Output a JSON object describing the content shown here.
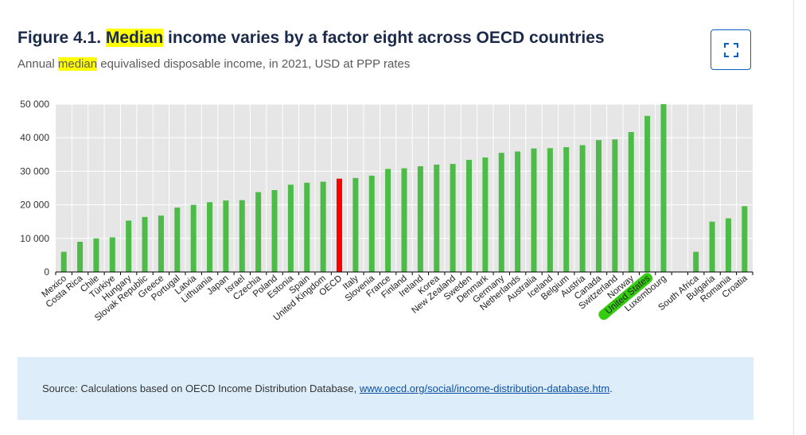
{
  "header": {
    "title_prefix": "Figure 4.1. ",
    "title_highlight": "Median",
    "title_rest": " income varies by a factor eight across OECD countries",
    "subtitle_prefix": "Annual ",
    "subtitle_highlight": "median",
    "subtitle_rest": " equivalised disposable income, in 2021, USD at PPP rates"
  },
  "expand_icon": "expand-icon",
  "colors": {
    "bar": "#4cbb47",
    "highlight_bar": "#ff0000",
    "plot_background": "#e6e6e6",
    "gridline": "#ffffff",
    "label_highlight": "#33cc11"
  },
  "chart_data": {
    "type": "bar",
    "ylim": [
      0,
      50000
    ],
    "yticks": [
      0,
      10000,
      20000,
      30000,
      40000,
      50000
    ],
    "ytick_labels": [
      "0",
      "10 000",
      "20 000",
      "30 000",
      "40 000",
      "50 000"
    ],
    "grid": true,
    "highlight_category": "OECD",
    "label_highlight_category": "United States",
    "categories": [
      "Mexico",
      "Costa Rica",
      "Chile",
      "Türkiye",
      "Hungary",
      "Slovak Republic",
      "Greece",
      "Portugal",
      "Latvia",
      "Lithuania",
      "Japan",
      "Israel",
      "Czechia",
      "Poland",
      "Estonia",
      "Spain",
      "United Kingdom",
      "OECD",
      "Italy",
      "Slovenia",
      "France",
      "Finland",
      "Ireland",
      "Korea",
      "New Zealand",
      "Sweden",
      "Denmark",
      "Germany",
      "Netherlands",
      "Australia",
      "Iceland",
      "Belgium",
      "Austria",
      "Canada",
      "Switzerland",
      "Norway",
      "United States",
      "Luxembourg",
      "",
      "South Africa",
      "Bulgaria",
      "Romania",
      "Croatia"
    ],
    "values": [
      6000,
      9000,
      10000,
      10300,
      15300,
      16400,
      16800,
      19200,
      20000,
      20800,
      21300,
      21400,
      23800,
      24400,
      26000,
      26600,
      26900,
      27800,
      28000,
      28700,
      30700,
      30900,
      31500,
      32000,
      32200,
      33400,
      34100,
      35500,
      35900,
      36800,
      36900,
      37200,
      37800,
      39300,
      39500,
      41700,
      46500,
      50000,
      null,
      6000,
      15000,
      16000,
      19600
    ]
  },
  "source": {
    "text": "Source: Calculations based on OECD Income Distribution Database, ",
    "link_text": "www.oecd.org/social/income-distribution-database.htm",
    "period": "."
  }
}
